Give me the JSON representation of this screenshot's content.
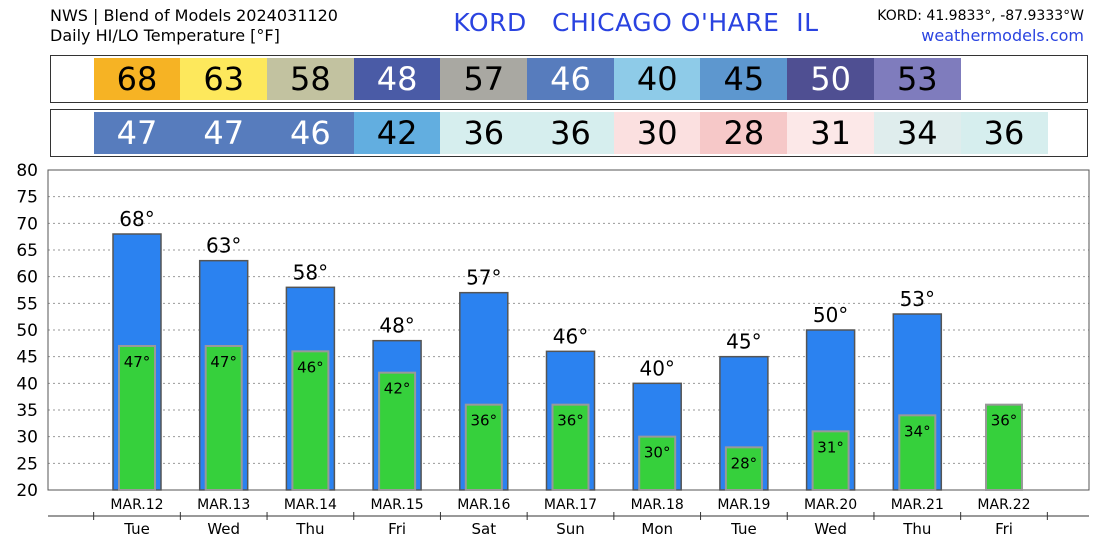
{
  "header": {
    "line1": "NWS | Blend of Models 2024031120",
    "line2": "Daily HI/LO Temperature [°F]",
    "station_title": "KORD   CHICAGO O'HARE  IL",
    "coords": "KORD: 41.9833°, -87.9333°W",
    "site": "weathermodels.com"
  },
  "hi_strip": [
    {
      "value": "68",
      "bg": "#f6b324",
      "fg": "#000000"
    },
    {
      "value": "63",
      "bg": "#fde85c",
      "fg": "#000000"
    },
    {
      "value": "58",
      "bg": "#c2c2a0",
      "fg": "#000000"
    },
    {
      "value": "48",
      "bg": "#4a5ba6",
      "fg": "#ffffff"
    },
    {
      "value": "57",
      "bg": "#a9a8a2",
      "fg": "#000000"
    },
    {
      "value": "46",
      "bg": "#577cbd",
      "fg": "#ffffff"
    },
    {
      "value": "40",
      "bg": "#8ecbe8",
      "fg": "#000000"
    },
    {
      "value": "45",
      "bg": "#5d97cf",
      "fg": "#000000"
    },
    {
      "value": "50",
      "bg": "#4f4f92",
      "fg": "#ffffff"
    },
    {
      "value": "53",
      "bg": "#7f7cbd",
      "fg": "#000000"
    }
  ],
  "lo_strip": [
    {
      "value": "47",
      "bg": "#577cbd",
      "fg": "#ffffff"
    },
    {
      "value": "47",
      "bg": "#577cbd",
      "fg": "#ffffff"
    },
    {
      "value": "46",
      "bg": "#577cbd",
      "fg": "#ffffff"
    },
    {
      "value": "42",
      "bg": "#62aee0",
      "fg": "#000000"
    },
    {
      "value": "36",
      "bg": "#d6eeee",
      "fg": "#000000"
    },
    {
      "value": "36",
      "bg": "#d6eeee",
      "fg": "#000000"
    },
    {
      "value": "30",
      "bg": "#fbe0e0",
      "fg": "#000000"
    },
    {
      "value": "28",
      "bg": "#f6c8c8",
      "fg": "#000000"
    },
    {
      "value": "31",
      "bg": "#fce8e8",
      "fg": "#000000"
    },
    {
      "value": "34",
      "bg": "#dfeded",
      "fg": "#000000"
    },
    {
      "value": "36",
      "bg": "#d6eeee",
      "fg": "#000000"
    }
  ],
  "chart_data": {
    "type": "bar",
    "categories": [
      "MAR.12",
      "MAR.13",
      "MAR.14",
      "MAR.15",
      "MAR.16",
      "MAR.17",
      "MAR.18",
      "MAR.19",
      "MAR.20",
      "MAR.21",
      "MAR.22"
    ],
    "weekdays": [
      "Tue",
      "Wed",
      "Thu",
      "Fri",
      "Sat",
      "Sun",
      "Mon",
      "Tue",
      "Wed",
      "Thu",
      "Fri"
    ],
    "series": [
      {
        "values": [
          68,
          63,
          58,
          48,
          57,
          46,
          40,
          45,
          50,
          53,
          null
        ],
        "color": "#2b82f0"
      },
      {
        "values": [
          47,
          47,
          46,
          42,
          36,
          36,
          30,
          28,
          31,
          34,
          36
        ],
        "color": "#36d03c"
      }
    ],
    "hi_labels": [
      "68°",
      "63°",
      "58°",
      "48°",
      "57°",
      "46°",
      "40°",
      "45°",
      "50°",
      "53°"
    ],
    "lo_labels": [
      "47°",
      "47°",
      "46°",
      "42°",
      "36°",
      "36°",
      "30°",
      "28°",
      "31°",
      "34°",
      "36°"
    ],
    "ylim": [
      20,
      80
    ],
    "yticks": [
      "20",
      "25",
      "30",
      "35",
      "40",
      "45",
      "50",
      "55",
      "60",
      "65",
      "70",
      "75",
      "80"
    ],
    "grid": true
  }
}
